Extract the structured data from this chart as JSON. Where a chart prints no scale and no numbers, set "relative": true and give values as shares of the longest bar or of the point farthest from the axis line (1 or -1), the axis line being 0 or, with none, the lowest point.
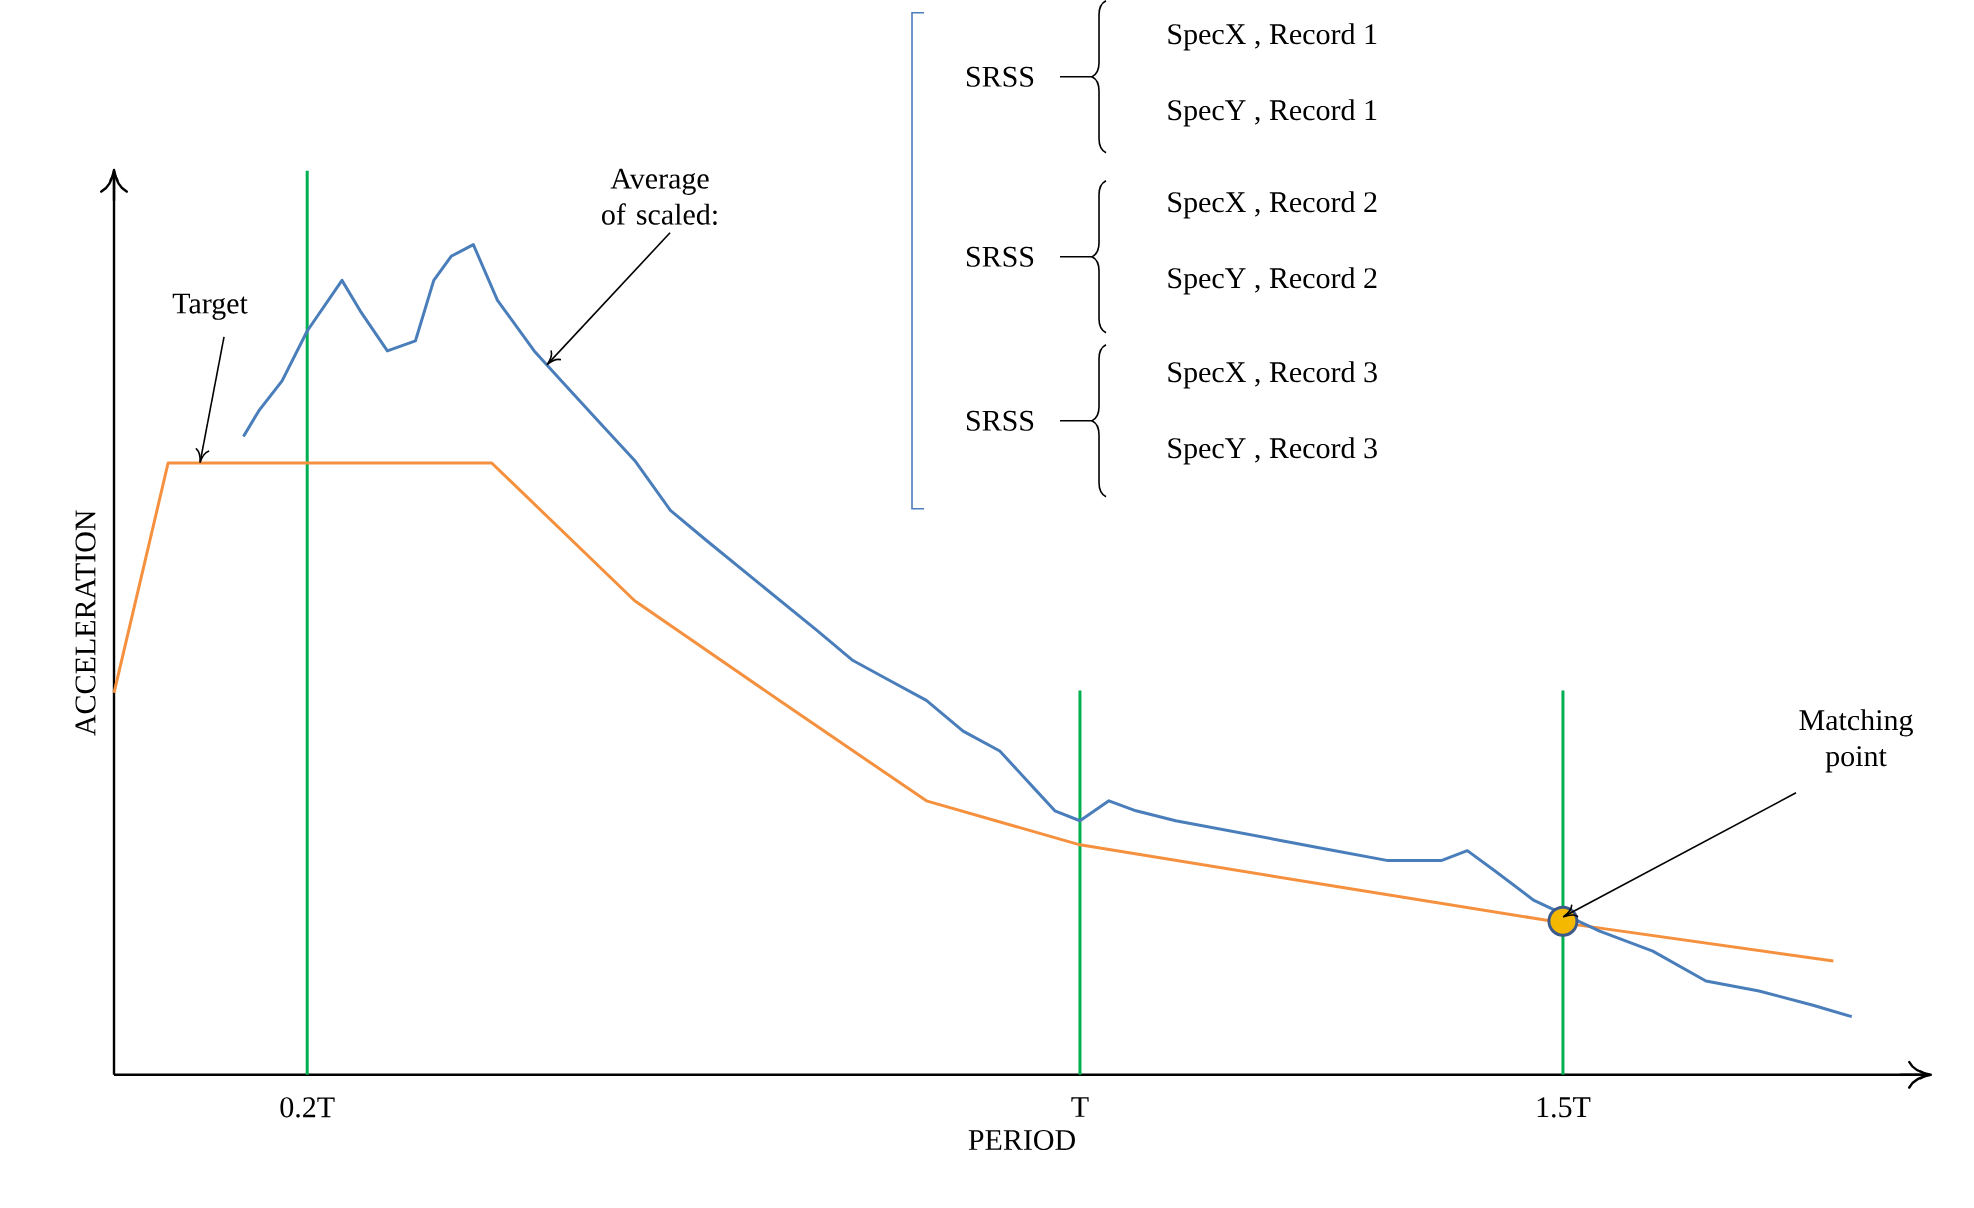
{
  "chart_data": {
    "type": "line",
    "relative": true,
    "xlabel": "PERIOD",
    "ylabel": "ACCELERATION",
    "xlim": [
      0,
      1.88
    ],
    "xticks": [
      {
        "value": 0.2,
        "label": "0.2T"
      },
      {
        "value": 1,
        "label": "T"
      },
      {
        "value": 1.5,
        "label": "1.5T"
      }
    ],
    "series": [
      {
        "color": "#f5913e",
        "x": [
          0,
          0.056,
          0.391,
          0.539,
          0.69,
          0.841,
          1,
          1.264,
          1.5,
          1.78
        ],
        "values": [
          0.46,
          0.737,
          0.737,
          0.571,
          0.45,
          0.33,
          0.277,
          0.227,
          0.183,
          0.137
        ]
      },
      {
        "color": "#4a7ebb",
        "x": [
          0.134,
          0.15,
          0.174,
          0.2,
          0.236,
          0.255,
          0.283,
          0.312,
          0.331,
          0.349,
          0.372,
          0.397,
          0.435,
          0.463,
          0.501,
          0.539,
          0.576,
          0.614,
          0.652,
          0.69,
          0.728,
          0.765,
          0.803,
          0.841,
          0.879,
          0.917,
          0.955,
          0.974,
          1,
          1.03,
          1.058,
          1.099,
          1.154,
          1.209,
          1.264,
          1.319,
          1.374,
          1.401,
          1.429,
          1.47,
          1.5,
          1.538,
          1.593,
          1.648,
          1.703,
          1.758,
          1.799
        ],
        "values": [
          0.769,
          0.8,
          0.836,
          0.896,
          0.957,
          0.92,
          0.872,
          0.884,
          0.957,
          0.986,
          1,
          0.933,
          0.872,
          0.836,
          0.788,
          0.74,
          0.68,
          0.643,
          0.607,
          0.571,
          0.535,
          0.499,
          0.475,
          0.451,
          0.414,
          0.39,
          0.342,
          0.318,
          0.306,
          0.33,
          0.318,
          0.306,
          0.294,
          0.282,
          0.27,
          0.258,
          0.258,
          0.27,
          0.246,
          0.21,
          null,
          0.173,
          0.149,
          0.113,
          0.101,
          0.084,
          0.07
        ]
      },
      {
        "type": "scatter",
        "marker": "circle",
        "color": "#f5b800",
        "x": [
          1.5
        ],
        "values": [
          0.185
        ]
      }
    ],
    "ref_lines": [
      {
        "axis": "x",
        "value": 0.2,
        "color": "#00b050"
      },
      {
        "axis": "x",
        "value": 1,
        "color": "#00b050"
      },
      {
        "axis": "x",
        "value": 1.5,
        "color": "#00b050"
      }
    ],
    "annotations": [
      {
        "text": "Target",
        "x": 0.089,
        "y": 0.737
      },
      {
        "text": "Average of scaled:",
        "x": 0.448,
        "y": 0.855
      },
      {
        "text": "Matching point",
        "x": 1.5,
        "y": 0.19
      },
      "SRSS",
      "SpecX , Record 1",
      "SpecY , Record 1",
      "SRSS",
      "SpecX , Record 2",
      "SpecY , Record 2",
      "SRSS",
      "SpecX , Record 3",
      "SpecY , Record 3"
    ]
  }
}
